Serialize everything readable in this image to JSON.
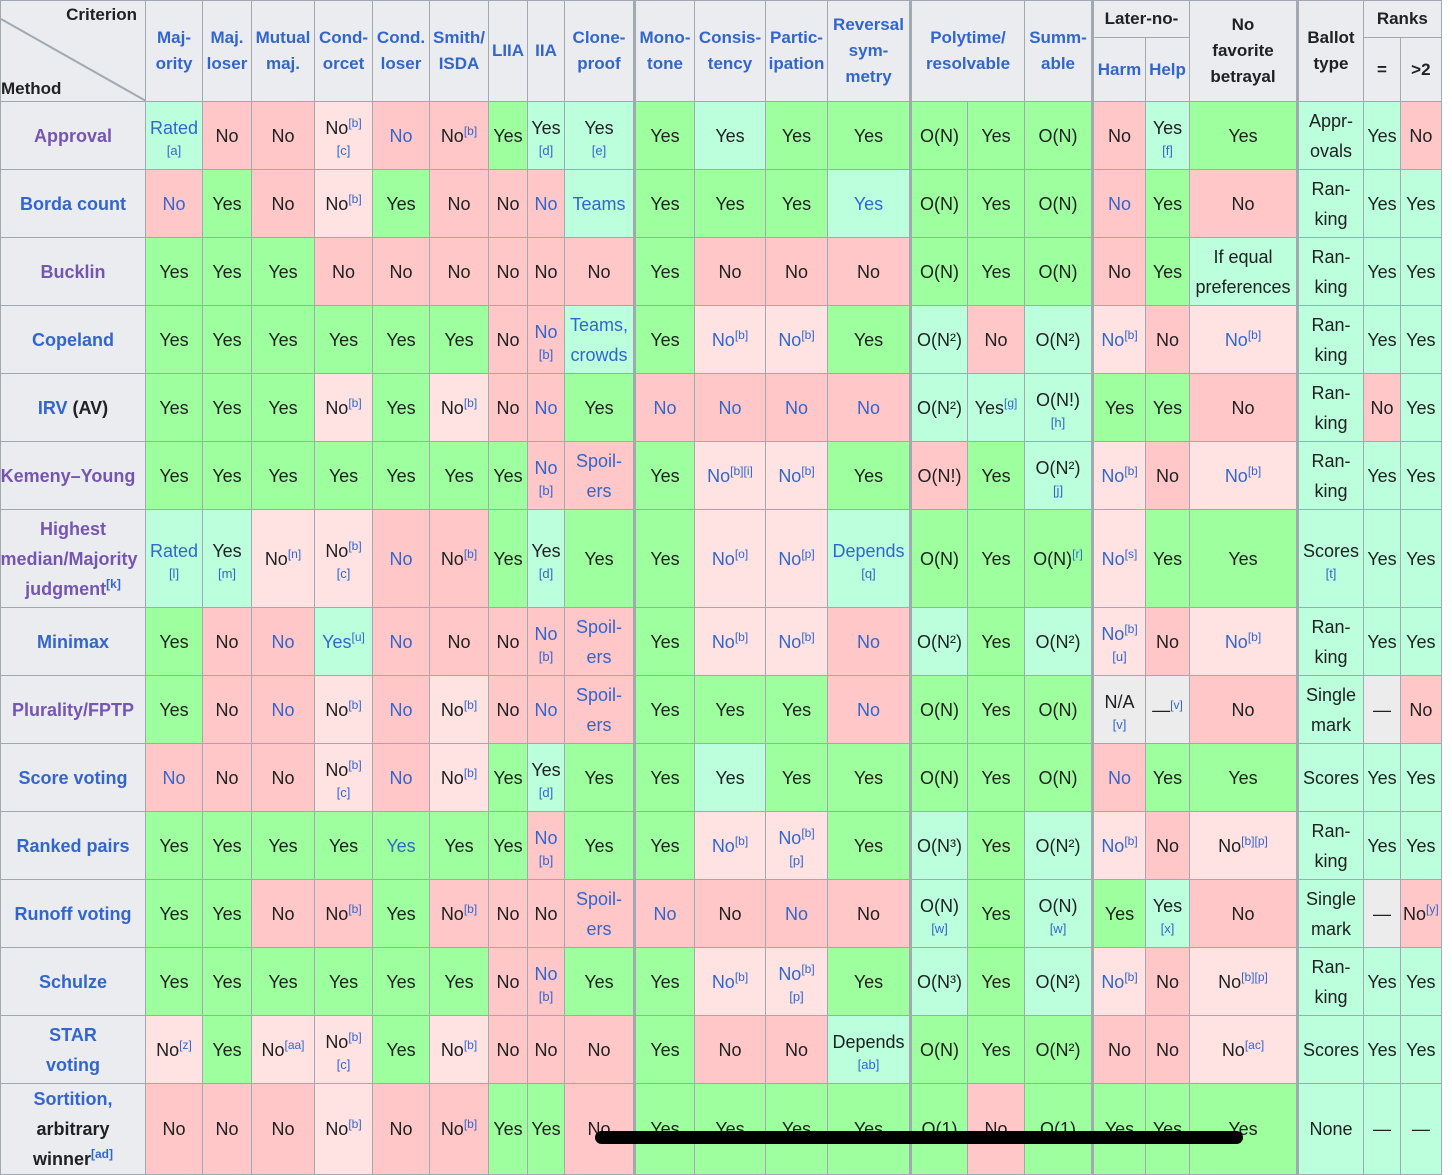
{
  "corner": {
    "criterion": "Criterion",
    "method": "Method"
  },
  "headers": {
    "majority": [
      "Maj-",
      "ority"
    ],
    "maj_loser": [
      "Maj.",
      "loser"
    ],
    "mutual_maj": [
      "Mutual",
      "maj."
    ],
    "condorcet": [
      "Cond-",
      "orcet"
    ],
    "cond_loser": [
      "Cond.",
      "loser"
    ],
    "smith_isda": [
      "Smith/",
      "ISDA"
    ],
    "liia": "LIIA",
    "iia": "IIA",
    "clone_proof": [
      "Clone-",
      "proof"
    ],
    "monotone": [
      "Mono-",
      "tone"
    ],
    "consistency": [
      "Consis-",
      "tency"
    ],
    "participation": [
      "Partic-",
      "ipation"
    ],
    "reversal": [
      "Reversal",
      "sym-",
      "metry"
    ],
    "polytime": [
      "Polytime/",
      "resolvable"
    ],
    "summable": [
      "Summ-",
      "able"
    ],
    "later_no": "Later-no-",
    "harm": "Harm",
    "help": "Help",
    "no_fav": [
      "No",
      "favorite",
      "betrayal"
    ],
    "ballot": [
      "Ballot",
      "type"
    ],
    "ranks": "Ranks",
    "eq": "=",
    "gt2": ">2"
  },
  "rows": [
    {
      "name": "Approval",
      "cells": [
        [
          "Rated",
          "[a]"
        ],
        "No",
        "No",
        [
          "No",
          "[b]",
          "[c]"
        ],
        "No",
        [
          "No",
          "[b]"
        ],
        "Yes",
        [
          "Yes",
          "[d]"
        ],
        [
          "Yes",
          "[e]"
        ],
        "Yes",
        "Yes",
        "Yes",
        "Yes",
        "O(N)",
        "Yes",
        "O(N)",
        "No",
        [
          "Yes",
          "[f]"
        ],
        "Yes",
        [
          "Appr-",
          "ovals"
        ],
        "Yes",
        "No"
      ]
    },
    {
      "name": "Borda count",
      "cells": [
        "No",
        "Yes",
        "No",
        [
          "No",
          "[b]"
        ],
        "Yes",
        "No",
        "No",
        "No",
        "Teams",
        "Yes",
        "Yes",
        "Yes",
        "Yes",
        "O(N)",
        "Yes",
        "O(N)",
        "No",
        "Yes",
        "No",
        [
          "Ran-",
          "king"
        ],
        "Yes",
        "Yes"
      ]
    },
    {
      "name": "Bucklin",
      "cells": [
        "Yes",
        "Yes",
        "Yes",
        "No",
        "No",
        "No",
        "No",
        "No",
        "No",
        "Yes",
        "No",
        "No",
        "No",
        "O(N)",
        "Yes",
        "O(N)",
        "No",
        "Yes",
        [
          "If equal",
          "preferences"
        ],
        [
          "Ran-",
          "king"
        ],
        "Yes",
        "Yes"
      ]
    },
    {
      "name": "Copeland",
      "cells": [
        "Yes",
        "Yes",
        "Yes",
        "Yes",
        "Yes",
        "Yes",
        "No",
        [
          "No",
          "[b]"
        ],
        [
          "Teams,",
          "crowds"
        ],
        "Yes",
        [
          "No",
          "[b]"
        ],
        [
          "No",
          "[b]"
        ],
        "Yes",
        "O(N²)",
        "No",
        "O(N²)",
        [
          "No",
          "[b]"
        ],
        "No",
        [
          "No",
          "[b]"
        ],
        [
          "Ran-",
          "king"
        ],
        "Yes",
        "Yes"
      ]
    },
    {
      "name": "IRV",
      "suffix": "(AV)",
      "cells": [
        "Yes",
        "Yes",
        "Yes",
        [
          "No",
          "[b]"
        ],
        "Yes",
        [
          "No",
          "[b]"
        ],
        "No",
        "No",
        "Yes",
        "No",
        "No",
        "No",
        "No",
        "O(N²)",
        [
          "Yes",
          "[g]"
        ],
        [
          "O(N!)",
          "[h]"
        ],
        "Yes",
        "Yes",
        "No",
        [
          "Ran-",
          "king"
        ],
        "No",
        "Yes"
      ]
    },
    {
      "name": "Kemeny–Young",
      "cells": [
        "Yes",
        "Yes",
        "Yes",
        "Yes",
        "Yes",
        "Yes",
        "Yes",
        [
          "No",
          "[b]"
        ],
        [
          "Spoil-",
          "ers"
        ],
        "Yes",
        [
          "No",
          "[b][i]"
        ],
        [
          "No",
          "[b]"
        ],
        "Yes",
        "O(N!)",
        "Yes",
        [
          "O(N²)",
          "[j]"
        ],
        [
          "No",
          "[b]"
        ],
        "No",
        [
          "No",
          "[b]"
        ],
        [
          "Ran-",
          "king"
        ],
        "Yes",
        "Yes"
      ]
    },
    {
      "name": [
        "Highest",
        "median/Majority",
        "judgment"
      ],
      "name_sup": "[k]",
      "cells": [
        [
          "Rated",
          "[l]"
        ],
        [
          "Yes",
          "[m]"
        ],
        [
          "No",
          "[n]"
        ],
        [
          "No",
          "[b]",
          "[c]"
        ],
        "No",
        [
          "No",
          "[b]"
        ],
        "Yes",
        [
          "Yes",
          "[d]"
        ],
        "Yes",
        "Yes",
        [
          "No",
          "[o]"
        ],
        [
          "No",
          "[p]"
        ],
        [
          "Depends",
          "[q]"
        ],
        "O(N)",
        "Yes",
        [
          "O(N)",
          "[r]"
        ],
        [
          "No",
          "[s]"
        ],
        "Yes",
        "Yes",
        [
          "Scores",
          "[t]"
        ],
        "Yes",
        "Yes"
      ]
    },
    {
      "name": "Minimax",
      "cells": [
        "Yes",
        "No",
        "No",
        [
          "Yes",
          "[u]"
        ],
        "No",
        "No",
        "No",
        [
          "No",
          "[b]"
        ],
        [
          "Spoil-",
          "ers"
        ],
        "Yes",
        [
          "No",
          "[b]"
        ],
        [
          "No",
          "[b]"
        ],
        "No",
        "O(N²)",
        "Yes",
        "O(N²)",
        [
          "No",
          "[b]",
          "[u]"
        ],
        "No",
        [
          "No",
          "[b]"
        ],
        [
          "Ran-",
          "king"
        ],
        "Yes",
        "Yes"
      ]
    },
    {
      "name": "Plurality/FPTP",
      "cells": [
        "Yes",
        "No",
        "No",
        [
          "No",
          "[b]"
        ],
        "No",
        [
          "No",
          "[b]"
        ],
        "No",
        "No",
        [
          "Spoil-",
          "ers"
        ],
        "Yes",
        "Yes",
        "Yes",
        "No",
        "O(N)",
        "Yes",
        "O(N)",
        [
          "N/A",
          "[v]"
        ],
        [
          "—",
          "[v]"
        ],
        "No",
        [
          "Single",
          "mark"
        ],
        "—",
        "No"
      ]
    },
    {
      "name": "Score voting",
      "cells": [
        "No",
        "No",
        "No",
        [
          "No",
          "[b]",
          "[c]"
        ],
        "No",
        [
          "No",
          "[b]"
        ],
        "Yes",
        [
          "Yes",
          "[d]"
        ],
        "Yes",
        "Yes",
        "Yes",
        "Yes",
        "Yes",
        "O(N)",
        "Yes",
        "O(N)",
        "No",
        "Yes",
        "Yes",
        "Scores",
        "Yes",
        "Yes"
      ]
    },
    {
      "name": "Ranked pairs",
      "cells": [
        "Yes",
        "Yes",
        "Yes",
        "Yes",
        "Yes",
        "Yes",
        "Yes",
        [
          "No",
          "[b]"
        ],
        "Yes",
        "Yes",
        [
          "No",
          "[b]"
        ],
        [
          "No",
          "[b]",
          "[p]"
        ],
        "Yes",
        "O(N³)",
        "Yes",
        "O(N²)",
        [
          "No",
          "[b]"
        ],
        "No",
        [
          "No",
          "[b][p]"
        ],
        [
          "Ran-",
          "king"
        ],
        "Yes",
        "Yes"
      ]
    },
    {
      "name": "Runoff voting",
      "cells": [
        "Yes",
        "Yes",
        "No",
        [
          "No",
          "[b]"
        ],
        "Yes",
        [
          "No",
          "[b]"
        ],
        "No",
        "No",
        [
          "Spoil-",
          "ers"
        ],
        "No",
        "No",
        "No",
        "No",
        [
          "O(N)",
          "[w]"
        ],
        "Yes",
        [
          "O(N)",
          "[w]"
        ],
        "Yes",
        [
          "Yes",
          "[x]"
        ],
        "No",
        [
          "Single",
          "mark"
        ],
        "—",
        [
          "No",
          "[y]"
        ]
      ]
    },
    {
      "name": "Schulze",
      "cells": [
        "Yes",
        "Yes",
        "Yes",
        "Yes",
        "Yes",
        "Yes",
        "No",
        [
          "No",
          "[b]"
        ],
        "Yes",
        "Yes",
        [
          "No",
          "[b]"
        ],
        [
          "No",
          "[b]",
          "[p]"
        ],
        "Yes",
        "O(N³)",
        "Yes",
        "O(N²)",
        [
          "No",
          "[b]"
        ],
        "No",
        [
          "No",
          "[b][p]"
        ],
        [
          "Ran-",
          "king"
        ],
        "Yes",
        "Yes"
      ]
    },
    {
      "name": [
        "STAR",
        "voting"
      ],
      "cells": [
        [
          "No",
          "[z]"
        ],
        "Yes",
        [
          "No",
          "[aa]"
        ],
        [
          "No",
          "[b]",
          "[c]"
        ],
        "Yes",
        [
          "No",
          "[b]"
        ],
        "No",
        "No",
        "No",
        "Yes",
        "No",
        "No",
        [
          "Depends",
          "[ab]"
        ],
        "O(N)",
        "Yes",
        "O(N²)",
        "No",
        "No",
        [
          "No",
          "[ac]"
        ],
        "Scores",
        "Yes",
        "Yes"
      ]
    },
    {
      "name": [
        "Sortition,",
        "arbitrary",
        "winner"
      ],
      "name_sup": "[ad]",
      "cells": [
        "No",
        "No",
        "No",
        [
          "No",
          "[b]"
        ],
        "No",
        [
          "No",
          "[b]"
        ],
        "Yes",
        "Yes",
        "No",
        "Yes",
        "Yes",
        "Yes",
        "Yes",
        "O(1)",
        "No",
        "O(1)",
        "Yes",
        "Yes",
        "Yes",
        "None",
        "—",
        "—"
      ]
    }
  ],
  "colors": {
    "yes": "#9eff9e",
    "yes_soft": "#bbffdd",
    "no": "#ffc7c7",
    "no_soft": "#ffe3e3",
    "na": "#ececec",
    "header": "#eaecf0",
    "link": "#3366cc",
    "visited": "#7655b2"
  }
}
